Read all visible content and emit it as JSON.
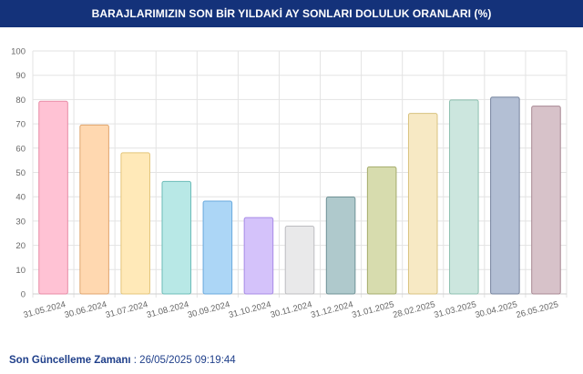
{
  "header": {
    "title": "BARAJLARIMIZIN SON BİR YILDAKİ AY SONLARI DOLULUK ORANLARI (%)"
  },
  "footer": {
    "label": "Son Güncelleme Zamanı",
    "value": ": 26/05/2025 09:19:44"
  },
  "chart_data": {
    "type": "bar",
    "categories": [
      "31.05.2024",
      "30.06.2024",
      "31.07.2024",
      "31.08.2024",
      "30.09.2024",
      "31.10.2024",
      "30.11.2024",
      "31.12.2024",
      "31.01.2025",
      "28.02.2025",
      "31.03.2025",
      "30.04.2025",
      "26.05.2025"
    ],
    "values": [
      79.3,
      69.5,
      58.1,
      46.3,
      38.2,
      31.4,
      27.9,
      39.9,
      52.3,
      74.3,
      79.8,
      81.0,
      77.3
    ],
    "ylim": [
      0,
      100
    ],
    "yticks": [
      0,
      10,
      20,
      30,
      40,
      50,
      60,
      70,
      80,
      90,
      100
    ],
    "grid": true,
    "colors": [
      {
        "fill": "#ffc2d4",
        "stroke": "#e88aa6"
      },
      {
        "fill": "#ffd8b0",
        "stroke": "#e0a56e"
      },
      {
        "fill": "#ffe9b8",
        "stroke": "#e4c57a"
      },
      {
        "fill": "#b8e8e6",
        "stroke": "#6cbcb8"
      },
      {
        "fill": "#acd6f6",
        "stroke": "#6aaade"
      },
      {
        "fill": "#d4c2fa",
        "stroke": "#a78ae6"
      },
      {
        "fill": "#e9e9ea",
        "stroke": "#bdbdc0"
      },
      {
        "fill": "#afc9cc",
        "stroke": "#6f9296"
      },
      {
        "fill": "#d7dcae",
        "stroke": "#a5ac6c"
      },
      {
        "fill": "#f7e9c4",
        "stroke": "#d8c27f"
      },
      {
        "fill": "#cce6de",
        "stroke": "#8dc0b0"
      },
      {
        "fill": "#b3bfd4",
        "stroke": "#75839e"
      },
      {
        "fill": "#d7c2c9",
        "stroke": "#a88893"
      }
    ]
  }
}
